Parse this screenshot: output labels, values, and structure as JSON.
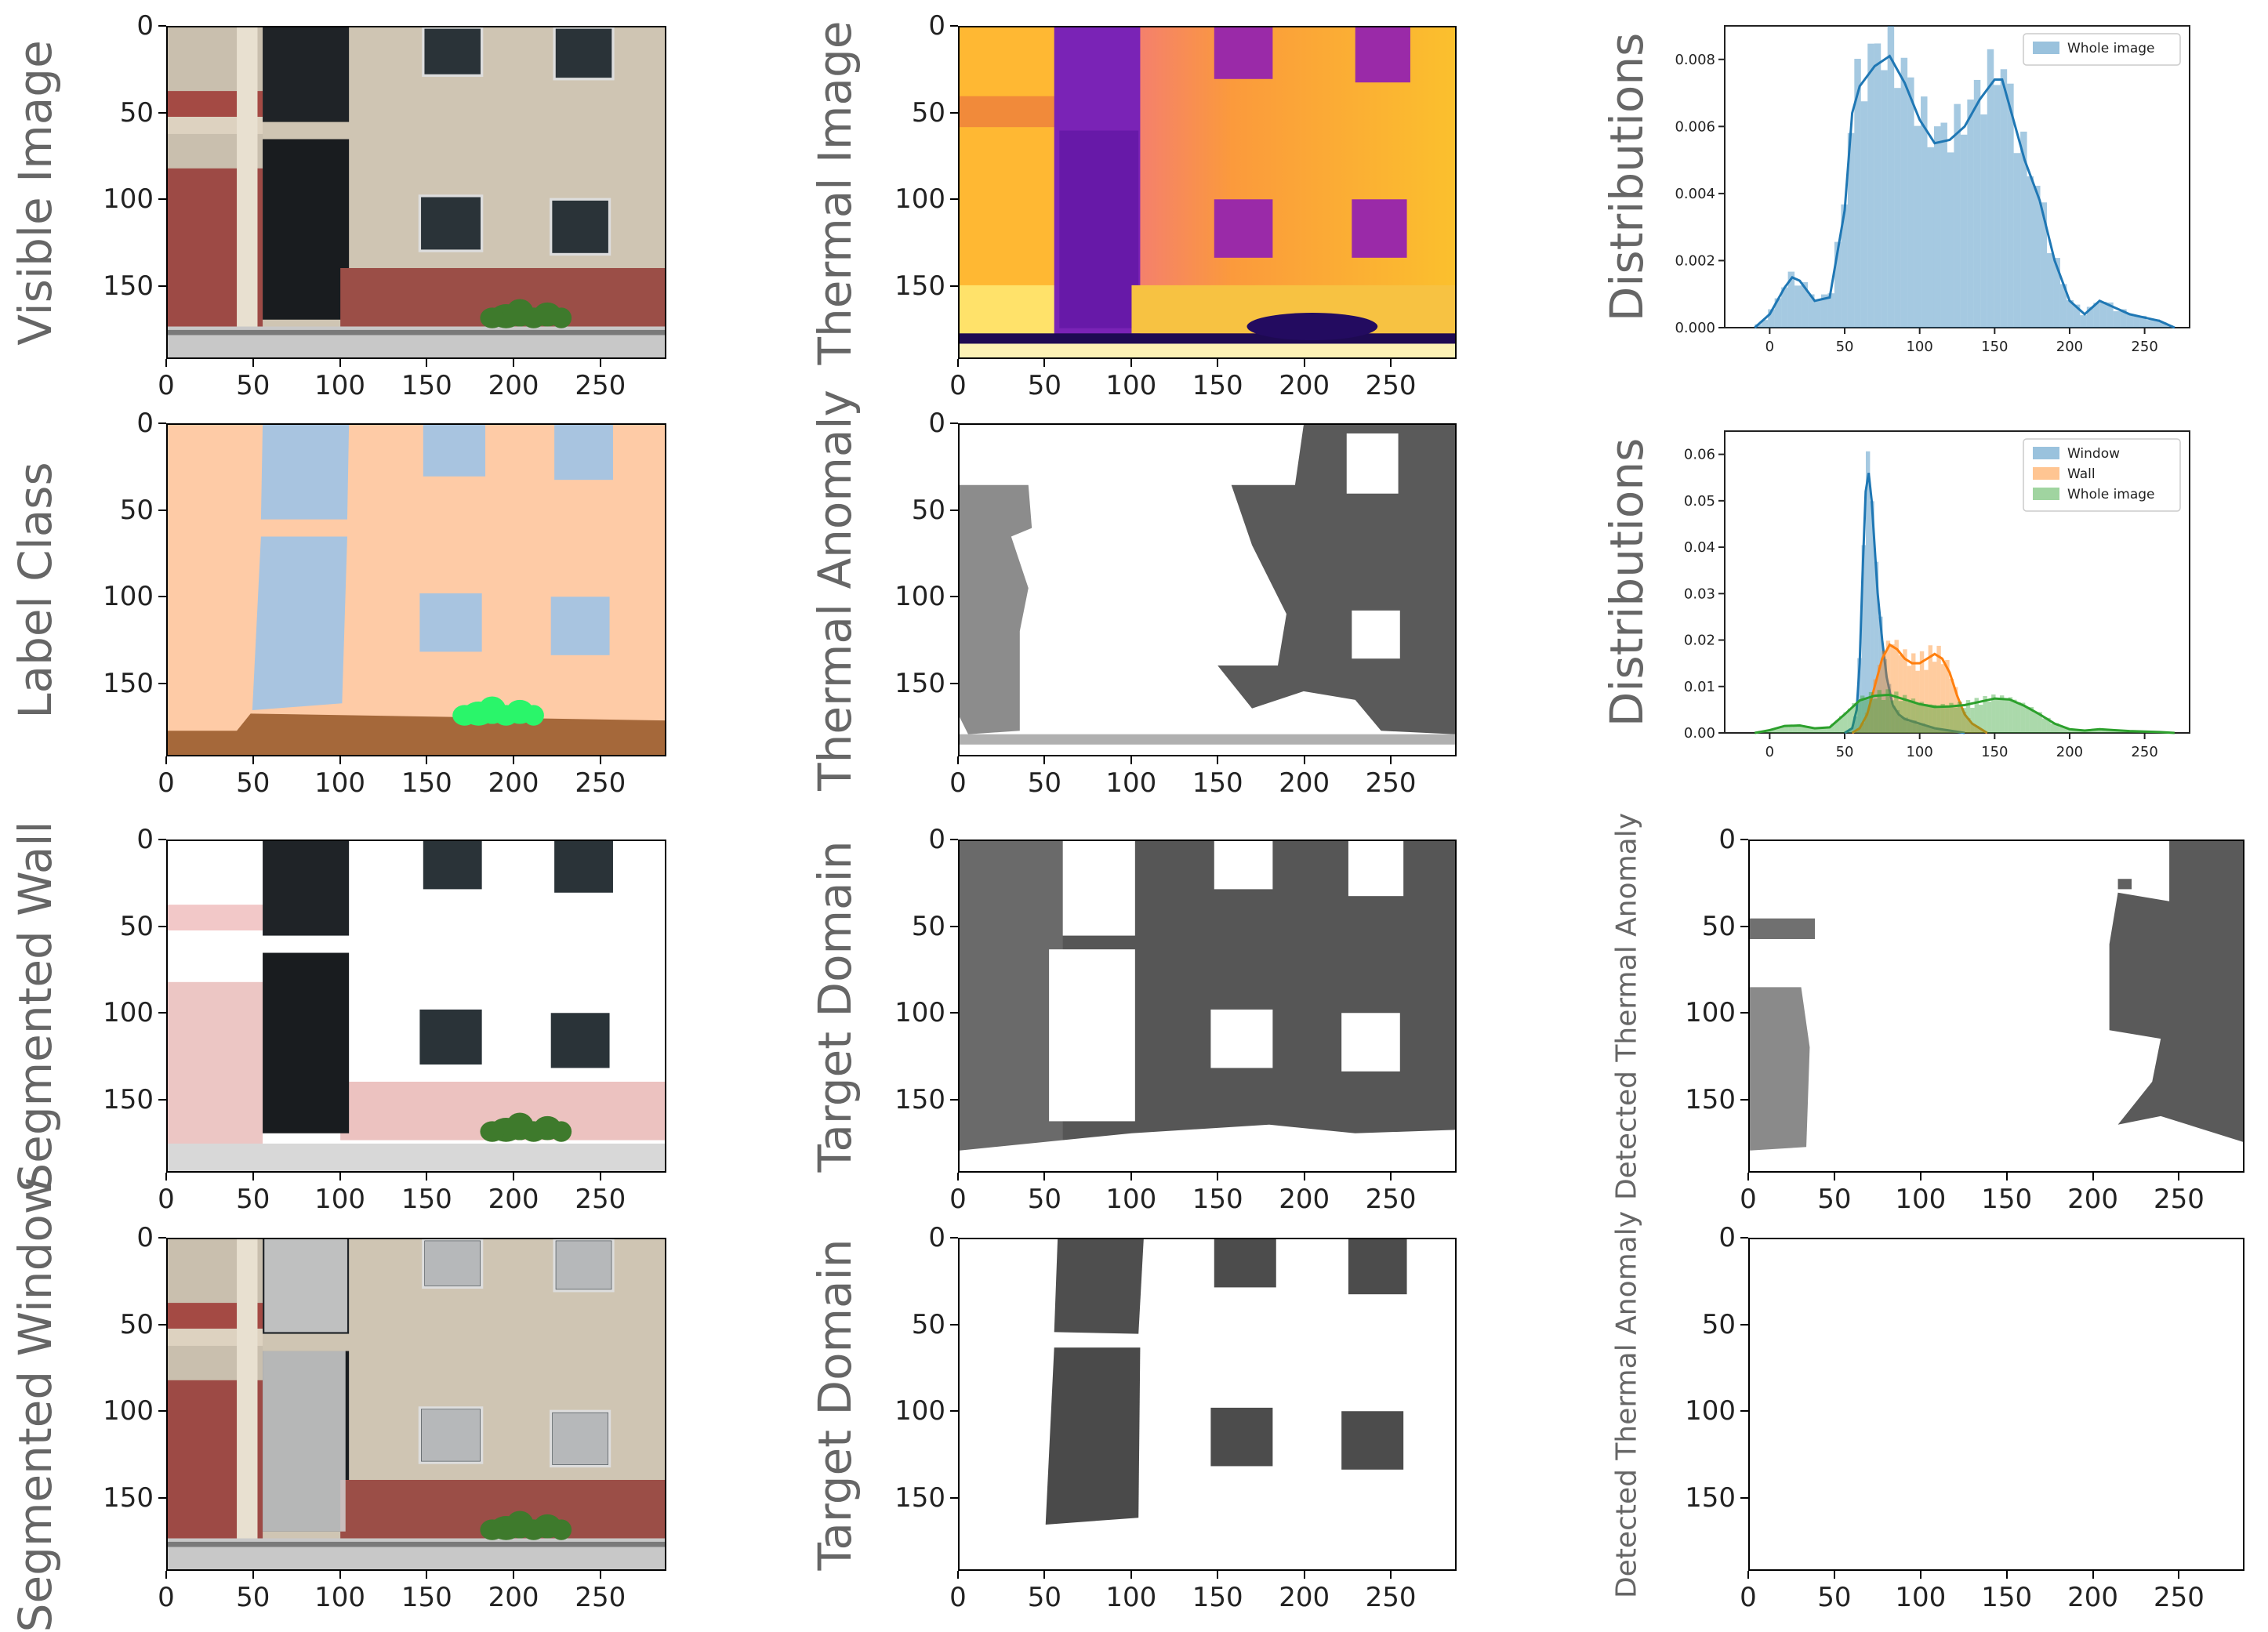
{
  "panels": [
    {
      "id": "visible-image",
      "row": 0,
      "col": 0,
      "ylabel": "Visible Image",
      "kind": "image"
    },
    {
      "id": "thermal-image",
      "row": 0,
      "col": 1,
      "ylabel": "Thermal Image",
      "kind": "image"
    },
    {
      "id": "whole-image-distribution",
      "row": 0,
      "col": 2,
      "ylabel": "Distributions",
      "kind": "plot"
    },
    {
      "id": "label-class",
      "row": 1,
      "col": 0,
      "ylabel": "Label Class",
      "kind": "image"
    },
    {
      "id": "thermal-anomaly",
      "row": 1,
      "col": 1,
      "ylabel": "Thermal Anomaly",
      "kind": "image"
    },
    {
      "id": "class-distributions",
      "row": 1,
      "col": 2,
      "ylabel": "Distributions",
      "kind": "plot"
    },
    {
      "id": "segmented-wall",
      "row": 2,
      "col": 0,
      "ylabel": "Segmented Wall",
      "kind": "image"
    },
    {
      "id": "target-domain-wall",
      "row": 2,
      "col": 1,
      "ylabel": "Target Domain",
      "kind": "image"
    },
    {
      "id": "detected-anomaly-wall",
      "row": 2,
      "col": 2,
      "ylabel": "Detected Thermal Anomaly",
      "kind": "image"
    },
    {
      "id": "segmented-window",
      "row": 3,
      "col": 0,
      "ylabel": "Segmented Window",
      "kind": "image"
    },
    {
      "id": "target-domain-window",
      "row": 3,
      "col": 1,
      "ylabel": "Target Domain",
      "kind": "image"
    },
    {
      "id": "detected-anomaly-window",
      "row": 3,
      "col": 2,
      "ylabel": "Detected Thermal Anomaly",
      "kind": "image"
    }
  ],
  "image_axes": {
    "xticks": [
      "0",
      "50",
      "100",
      "150",
      "200",
      "250"
    ],
    "yticks": [
      "0",
      "50",
      "100",
      "150"
    ],
    "xmax": 288,
    "ymax": 192
  },
  "colors": {
    "wall_label": "#fecba6",
    "window_label": "#a8c4e0",
    "ground_label": "#a5683a",
    "vegetation_label": "#2af56a",
    "window_series": "#1f77b4",
    "wall_series": "#ff7f0e",
    "whole_series": "#2ca02c"
  },
  "chart_data": [
    {
      "panel": "whole-image-distribution",
      "type": "area",
      "title": "",
      "xlabel": "",
      "ylabel": "Distributions",
      "xlim": [
        -30,
        280
      ],
      "ylim": [
        0,
        0.009
      ],
      "xticks": [
        "0",
        "50",
        "100",
        "150",
        "200",
        "250"
      ],
      "yticks": [
        "0.000",
        "0.002",
        "0.004",
        "0.006",
        "0.008"
      ],
      "legend": [
        "Whole image"
      ],
      "legend_position": "top-right",
      "series": [
        {
          "name": "Whole image",
          "color": "#1f77b4",
          "x": [
            -10,
            0,
            10,
            15,
            20,
            30,
            40,
            50,
            55,
            60,
            70,
            80,
            90,
            100,
            110,
            120,
            130,
            140,
            150,
            155,
            160,
            170,
            180,
            190,
            200,
            210,
            220,
            230,
            240,
            250,
            260,
            270
          ],
          "y": [
            0.0,
            0.0004,
            0.0012,
            0.0015,
            0.0014,
            0.0008,
            0.0009,
            0.0035,
            0.0064,
            0.0072,
            0.0078,
            0.0081,
            0.0073,
            0.0062,
            0.0055,
            0.0056,
            0.006,
            0.0068,
            0.0074,
            0.0074,
            0.0066,
            0.005,
            0.0038,
            0.002,
            0.0008,
            0.0004,
            0.0008,
            0.0006,
            0.0004,
            0.0003,
            0.0002,
            0.0
          ]
        }
      ]
    },
    {
      "panel": "class-distributions",
      "type": "area",
      "title": "",
      "xlabel": "",
      "ylabel": "Distributions",
      "xlim": [
        -30,
        280
      ],
      "ylim": [
        0,
        0.065
      ],
      "xticks": [
        "0",
        "50",
        "100",
        "150",
        "200",
        "250"
      ],
      "yticks": [
        "0.00",
        "0.01",
        "0.02",
        "0.03",
        "0.04",
        "0.05",
        "0.06"
      ],
      "legend": [
        "Window",
        "Wall",
        "Whole image"
      ],
      "legend_position": "top-right",
      "series": [
        {
          "name": "Window",
          "color": "#1f77b4",
          "x": [
            50,
            55,
            58,
            60,
            62,
            64,
            66,
            68,
            70,
            72,
            75,
            78,
            82,
            86,
            90,
            100,
            110,
            120,
            130
          ],
          "y": [
            0.0,
            0.001,
            0.005,
            0.015,
            0.035,
            0.052,
            0.056,
            0.05,
            0.04,
            0.03,
            0.02,
            0.012,
            0.006,
            0.004,
            0.003,
            0.002,
            0.001,
            0.0005,
            0.0
          ]
        },
        {
          "name": "Wall",
          "color": "#ff7f0e",
          "x": [
            55,
            60,
            65,
            70,
            75,
            80,
            85,
            90,
            95,
            100,
            105,
            110,
            115,
            120,
            125,
            130,
            135,
            140,
            145
          ],
          "y": [
            0.0,
            0.001,
            0.004,
            0.01,
            0.016,
            0.019,
            0.018,
            0.016,
            0.015,
            0.015,
            0.016,
            0.017,
            0.016,
            0.013,
            0.008,
            0.004,
            0.002,
            0.001,
            0.0
          ]
        },
        {
          "name": "Whole image",
          "color": "#2ca02c",
          "x": [
            -10,
            0,
            10,
            20,
            30,
            40,
            50,
            60,
            70,
            80,
            90,
            100,
            110,
            120,
            130,
            140,
            150,
            160,
            170,
            180,
            190,
            200,
            210,
            220,
            230,
            240,
            250,
            260,
            270
          ],
          "y": [
            0.0,
            0.0006,
            0.0015,
            0.0016,
            0.001,
            0.0012,
            0.004,
            0.007,
            0.008,
            0.0082,
            0.0072,
            0.0062,
            0.0056,
            0.0057,
            0.006,
            0.0067,
            0.0074,
            0.0072,
            0.0058,
            0.004,
            0.002,
            0.0008,
            0.0005,
            0.0008,
            0.0006,
            0.0004,
            0.0003,
            0.0002,
            0.0
          ]
        }
      ]
    }
  ]
}
